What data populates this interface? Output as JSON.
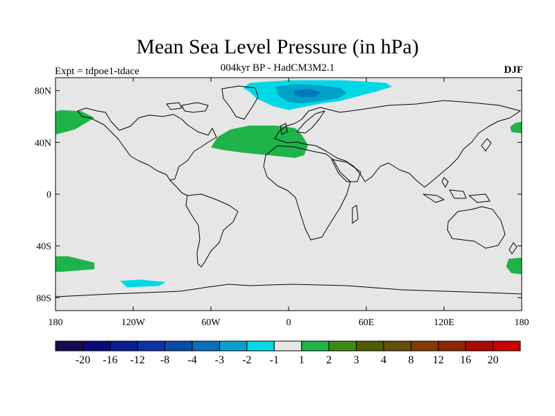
{
  "header": {
    "title": "Mean Sea Level Pressure (in hPa)",
    "subtitle": "004kyr BP - HadCM3M2.1",
    "experiment": "Expt = tdpoe1-tdace",
    "season": "DJF"
  },
  "map": {
    "projection": "cylindrical equidistant",
    "lon_range": [
      -180,
      180
    ],
    "lat_range": [
      -90,
      90
    ],
    "background_color": "#e6e6e6",
    "coastline_color": "#000000",
    "lat_ticks": [
      {
        "value": 80,
        "label": "80N"
      },
      {
        "value": 40,
        "label": "40N"
      },
      {
        "value": 0,
        "label": "0"
      },
      {
        "value": -40,
        "label": "40S"
      },
      {
        "value": -80,
        "label": "80S"
      }
    ],
    "lon_ticks": [
      {
        "value": -180,
        "label": "180"
      },
      {
        "value": -120,
        "label": "120W"
      },
      {
        "value": -60,
        "label": "60W"
      },
      {
        "value": 0,
        "label": "0"
      },
      {
        "value": 60,
        "label": "60E"
      },
      {
        "value": 120,
        "label": "120E"
      },
      {
        "value": 180,
        "label": "180"
      }
    ],
    "regions": [
      {
        "name": "arctic-weak-low",
        "level": "-2 to -1",
        "color": "#00d8e6",
        "points": [
          [
            -30,
            86
          ],
          [
            0,
            88
          ],
          [
            40,
            88
          ],
          [
            60,
            87
          ],
          [
            75,
            86
          ],
          [
            80,
            83
          ],
          [
            70,
            80
          ],
          [
            55,
            76
          ],
          [
            40,
            72
          ],
          [
            25,
            70
          ],
          [
            10,
            67
          ],
          [
            0,
            65
          ],
          [
            -12,
            68
          ],
          [
            -25,
            74
          ],
          [
            -30,
            79
          ],
          [
            -35,
            82
          ]
        ]
      },
      {
        "name": "arctic-moderate-low",
        "level": "-3 to -2",
        "color": "#00a0c8",
        "points": [
          [
            -10,
            83
          ],
          [
            5,
            85
          ],
          [
            25,
            84
          ],
          [
            40,
            82
          ],
          [
            45,
            78
          ],
          [
            38,
            74
          ],
          [
            25,
            72
          ],
          [
            10,
            70
          ],
          [
            0,
            71
          ],
          [
            -8,
            76
          ]
        ]
      },
      {
        "name": "arctic-core-low",
        "level": "-4 to -3",
        "color": "#0078bc",
        "points": [
          [
            5,
            80
          ],
          [
            15,
            81
          ],
          [
            25,
            79
          ],
          [
            20,
            75
          ],
          [
            10,
            75
          ],
          [
            4,
            77
          ]
        ]
      },
      {
        "name": "north-atlantic-high",
        "level": "1 to 2",
        "color": "#1fb34a",
        "points": [
          [
            -55,
            44
          ],
          [
            -45,
            50
          ],
          [
            -30,
            53
          ],
          [
            -10,
            53
          ],
          [
            5,
            51
          ],
          [
            10,
            46
          ],
          [
            15,
            38
          ],
          [
            12,
            30
          ],
          [
            5,
            28
          ],
          [
            -15,
            30
          ],
          [
            -35,
            32
          ],
          [
            -50,
            34
          ],
          [
            -60,
            36
          ]
        ]
      },
      {
        "name": "north-pacific-high",
        "level": "1 to 2",
        "color": "#1fb34a",
        "points": [
          [
            -180,
            46
          ],
          [
            -165,
            50
          ],
          [
            -150,
            59
          ],
          [
            -160,
            64
          ],
          [
            -175,
            65
          ],
          [
            -180,
            64
          ]
        ]
      },
      {
        "name": "northwest-pacific-high",
        "level": "1 to 2",
        "color": "#1fb34a",
        "points": [
          [
            172,
            48
          ],
          [
            180,
            47
          ],
          [
            180,
            56
          ],
          [
            175,
            55
          ],
          [
            171,
            52
          ]
        ]
      },
      {
        "name": "southern-ocean-high-west",
        "level": "1 to 2",
        "color": "#1fb34a",
        "points": [
          [
            -180,
            -48
          ],
          [
            -170,
            -48
          ],
          [
            -150,
            -53
          ],
          [
            -150,
            -58
          ],
          [
            -175,
            -60
          ],
          [
            -180,
            -60
          ]
        ]
      },
      {
        "name": "southern-ocean-high-east",
        "level": "1 to 2",
        "color": "#1fb34a",
        "points": [
          [
            170,
            -50
          ],
          [
            180,
            -49
          ],
          [
            180,
            -62
          ],
          [
            172,
            -61
          ],
          [
            168,
            -56
          ]
        ]
      },
      {
        "name": "southeast-pacific-low",
        "level": "-2 to -1",
        "color": "#00d8e6",
        "points": [
          [
            -130,
            -67
          ],
          [
            -115,
            -66
          ],
          [
            -95,
            -68
          ],
          [
            -100,
            -71
          ],
          [
            -125,
            -72
          ]
        ]
      }
    ]
  },
  "colorbar": {
    "colors": [
      "#1a0a50",
      "#0a0a78",
      "#0a1e91",
      "#0a32a5",
      "#0a4ba5",
      "#0a6eb9",
      "#0aa0cd",
      "#00d8e6",
      "#e6e6e6",
      "#1fb34a",
      "#3c8c14",
      "#505a00",
      "#64500a",
      "#823c00",
      "#8c2800",
      "#aa0a00",
      "#c80000"
    ],
    "labels": [
      "-20",
      "-16",
      "-12",
      "-8",
      "-4",
      "-3",
      "-2",
      "-1",
      "1",
      "2",
      "3",
      "4",
      "8",
      "12",
      "16",
      "20"
    ]
  }
}
